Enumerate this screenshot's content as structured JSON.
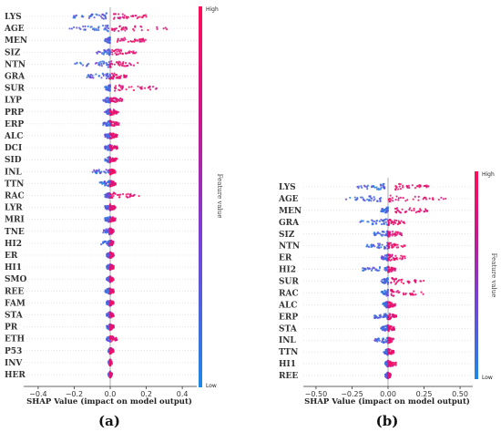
{
  "chart_data": [
    {
      "type": "scatter",
      "panel_label": "(a)",
      "xlabel": "SHAP Value (impact on model output)",
      "xlim": [
        -0.45,
        0.45
      ],
      "xticks": [
        "−0.4",
        "−0.2",
        "0.0",
        "0.2",
        "0.4"
      ],
      "tick_values": [
        -0.4,
        -0.2,
        0.0,
        0.2,
        0.4
      ],
      "colorbar": {
        "label": "Feature value",
        "high": "High",
        "low": "Low"
      },
      "colors": {
        "low": "#1E88E5",
        "high": "#FF0D57"
      },
      "features": [
        {
          "name": "LYS",
          "low_range": [
            -0.22,
            -0.02
          ],
          "high_range": [
            0.02,
            0.22
          ]
        },
        {
          "name": "AGE",
          "low_range": [
            -0.24,
            -0.01
          ],
          "high_range": [
            0.01,
            0.32
          ]
        },
        {
          "name": "MEN",
          "low_range": [
            -0.03,
            0.0
          ],
          "high_range": [
            0.04,
            0.2
          ]
        },
        {
          "name": "SIZ",
          "low_range": [
            -0.08,
            0.0
          ],
          "high_range": [
            0.01,
            0.15
          ]
        },
        {
          "name": "NTN",
          "low_range": [
            -0.2,
            0.0
          ],
          "high_range": [
            0.0,
            0.16
          ]
        },
        {
          "name": "GRA",
          "low_range": [
            -0.13,
            0.0
          ],
          "high_range": [
            0.0,
            0.1
          ]
        },
        {
          "name": "SUR",
          "low_range": [
            -0.03,
            0.0
          ],
          "high_range": [
            0.02,
            0.27
          ]
        },
        {
          "name": "LYP",
          "low_range": [
            -0.04,
            0.0
          ],
          "high_range": [
            0.0,
            0.07
          ]
        },
        {
          "name": "PRP",
          "low_range": [
            -0.03,
            0.0
          ],
          "high_range": [
            0.0,
            0.05
          ]
        },
        {
          "name": "ERP",
          "low_range": [
            -0.04,
            0.0
          ],
          "high_range": [
            0.0,
            0.05
          ]
        },
        {
          "name": "ALC",
          "low_range": [
            -0.03,
            0.0
          ],
          "high_range": [
            0.0,
            0.04
          ]
        },
        {
          "name": "DCI",
          "low_range": [
            -0.03,
            0.0
          ],
          "high_range": [
            0.0,
            0.04
          ]
        },
        {
          "name": "SID",
          "low_range": [
            -0.03,
            0.0
          ],
          "high_range": [
            0.0,
            0.04
          ]
        },
        {
          "name": "INL",
          "low_range": [
            -0.1,
            0.0
          ],
          "high_range": [
            0.0,
            0.03
          ]
        },
        {
          "name": "TTN",
          "low_range": [
            -0.06,
            0.0
          ],
          "high_range": [
            0.0,
            0.03
          ]
        },
        {
          "name": "RAC",
          "low_range": [
            -0.03,
            0.0
          ],
          "high_range": [
            0.0,
            0.16
          ]
        },
        {
          "name": "LYR",
          "low_range": [
            -0.03,
            0.0
          ],
          "high_range": [
            0.0,
            0.03
          ]
        },
        {
          "name": "MRI",
          "low_range": [
            -0.03,
            0.0
          ],
          "high_range": [
            0.0,
            0.03
          ]
        },
        {
          "name": "TNE",
          "low_range": [
            -0.04,
            0.0
          ],
          "high_range": [
            0.0,
            0.02
          ]
        },
        {
          "name": "HI2",
          "low_range": [
            -0.05,
            0.0
          ],
          "high_range": [
            0.0,
            0.02
          ]
        },
        {
          "name": "ER",
          "low_range": [
            -0.02,
            0.0
          ],
          "high_range": [
            0.0,
            0.02
          ]
        },
        {
          "name": "HI1",
          "low_range": [
            -0.02,
            0.0
          ],
          "high_range": [
            0.0,
            0.02
          ]
        },
        {
          "name": "SMO",
          "low_range": [
            -0.02,
            0.0
          ],
          "high_range": [
            0.0,
            0.02
          ]
        },
        {
          "name": "REE",
          "low_range": [
            -0.03,
            0.0
          ],
          "high_range": [
            0.0,
            0.02
          ]
        },
        {
          "name": "FAM",
          "low_range": [
            -0.02,
            0.0
          ],
          "high_range": [
            0.0,
            0.02
          ]
        },
        {
          "name": "STA",
          "low_range": [
            -0.02,
            0.0
          ],
          "high_range": [
            0.0,
            0.02
          ]
        },
        {
          "name": "PR",
          "low_range": [
            -0.02,
            0.0
          ],
          "high_range": [
            0.0,
            0.02
          ]
        },
        {
          "name": "ETH",
          "low_range": [
            -0.02,
            0.0
          ],
          "high_range": [
            0.0,
            0.04
          ]
        },
        {
          "name": "P53",
          "low_range": [
            -0.01,
            0.0
          ],
          "high_range": [
            0.0,
            0.02
          ]
        },
        {
          "name": "INV",
          "low_range": [
            -0.01,
            0.0
          ],
          "high_range": [
            0.0,
            0.01
          ]
        },
        {
          "name": "HER",
          "low_range": [
            -0.01,
            0.0
          ],
          "high_range": [
            0.0,
            0.01
          ]
        }
      ]
    },
    {
      "type": "scatter",
      "panel_label": "(b)",
      "xlabel": "SHAP Value (impact on model output)",
      "xlim": [
        -0.55,
        0.55
      ],
      "xticks": [
        "−0.50",
        "−0.25",
        "0.00",
        "0.25",
        "0.50"
      ],
      "tick_values": [
        -0.5,
        -0.25,
        0.0,
        0.25,
        0.5
      ],
      "colorbar": {
        "label": "Feature value",
        "high": "High",
        "low": "Low"
      },
      "colors": {
        "low": "#1E88E5",
        "high": "#FF0D57"
      },
      "features": [
        {
          "name": "LYS",
          "low_range": [
            -0.22,
            -0.02
          ],
          "high_range": [
            0.05,
            0.3
          ]
        },
        {
          "name": "AGE",
          "low_range": [
            -0.3,
            -0.05
          ],
          "high_range": [
            0.0,
            0.4
          ]
        },
        {
          "name": "MEN",
          "low_range": [
            -0.05,
            0.0
          ],
          "high_range": [
            0.05,
            0.28
          ]
        },
        {
          "name": "GRA",
          "low_range": [
            -0.2,
            0.0
          ],
          "high_range": [
            0.0,
            0.12
          ]
        },
        {
          "name": "SIZ",
          "low_range": [
            -0.1,
            0.0
          ],
          "high_range": [
            0.0,
            0.1
          ]
        },
        {
          "name": "NTN",
          "low_range": [
            -0.15,
            0.0
          ],
          "high_range": [
            0.0,
            0.12
          ]
        },
        {
          "name": "ER",
          "low_range": [
            -0.05,
            0.0
          ],
          "high_range": [
            0.0,
            0.12
          ]
        },
        {
          "name": "HI2",
          "low_range": [
            -0.18,
            0.0
          ],
          "high_range": [
            0.0,
            0.05
          ]
        },
        {
          "name": "SUR",
          "low_range": [
            -0.05,
            0.0
          ],
          "high_range": [
            0.02,
            0.25
          ]
        },
        {
          "name": "RAC",
          "low_range": [
            -0.05,
            0.0
          ],
          "high_range": [
            0.02,
            0.25
          ]
        },
        {
          "name": "ALC",
          "low_range": [
            -0.05,
            0.0
          ],
          "high_range": [
            0.0,
            0.05
          ]
        },
        {
          "name": "ERP",
          "low_range": [
            -0.1,
            0.0
          ],
          "high_range": [
            0.0,
            0.06
          ]
        },
        {
          "name": "STA",
          "low_range": [
            -0.05,
            0.0
          ],
          "high_range": [
            0.0,
            0.05
          ]
        },
        {
          "name": "INL",
          "low_range": [
            -0.1,
            0.0
          ],
          "high_range": [
            0.0,
            0.04
          ]
        },
        {
          "name": "TTN",
          "low_range": [
            -0.03,
            0.0
          ],
          "high_range": [
            0.0,
            0.04
          ]
        },
        {
          "name": "HI1",
          "low_range": [
            -0.02,
            0.0
          ],
          "high_range": [
            0.0,
            0.06
          ]
        },
        {
          "name": "REE",
          "low_range": [
            -0.02,
            0.0
          ],
          "high_range": [
            0.0,
            0.02
          ]
        }
      ]
    }
  ]
}
